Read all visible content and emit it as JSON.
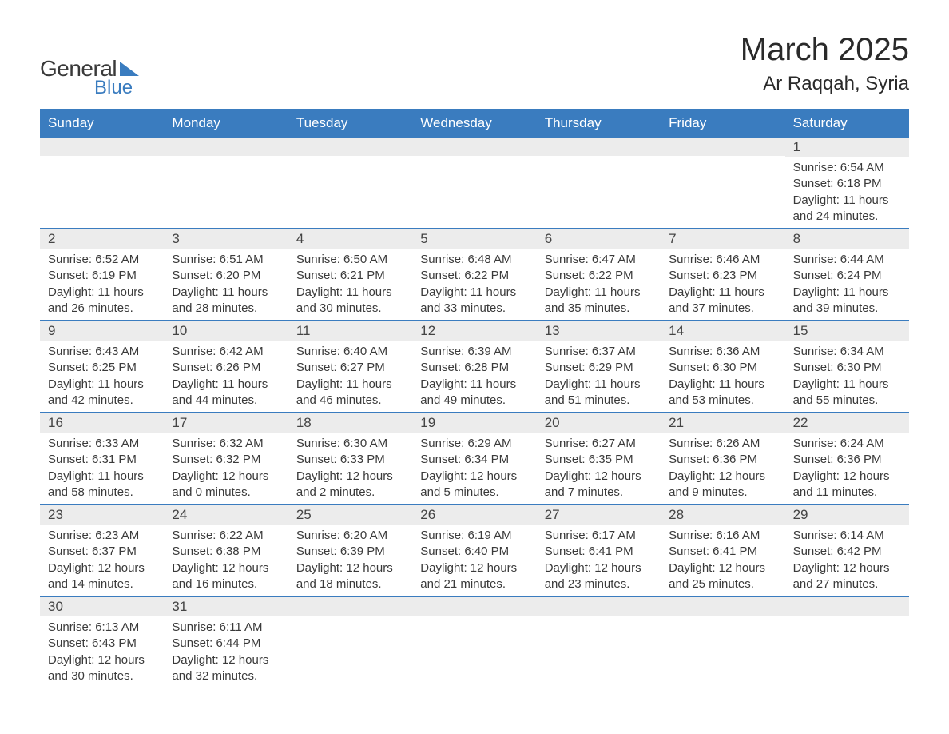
{
  "colors": {
    "header_bg": "#3a7cbf",
    "header_text": "#ffffff",
    "daynum_bg": "#ececec",
    "body_text": "#3a3a3a",
    "week_divider": "#3a7cbf",
    "page_bg": "#ffffff",
    "logo_accent": "#3a7cbf"
  },
  "logo": {
    "line1": "General",
    "line2": "Blue"
  },
  "title": {
    "month": "March 2025",
    "location": "Ar Raqqah, Syria"
  },
  "weekdays": [
    "Sunday",
    "Monday",
    "Tuesday",
    "Wednesday",
    "Thursday",
    "Friday",
    "Saturday"
  ],
  "weeks": [
    [
      {
        "n": "",
        "sr": "",
        "ss": "",
        "dl": ""
      },
      {
        "n": "",
        "sr": "",
        "ss": "",
        "dl": ""
      },
      {
        "n": "",
        "sr": "",
        "ss": "",
        "dl": ""
      },
      {
        "n": "",
        "sr": "",
        "ss": "",
        "dl": ""
      },
      {
        "n": "",
        "sr": "",
        "ss": "",
        "dl": ""
      },
      {
        "n": "",
        "sr": "",
        "ss": "",
        "dl": ""
      },
      {
        "n": "1",
        "sr": "Sunrise: 6:54 AM",
        "ss": "Sunset: 6:18 PM",
        "dl": "Daylight: 11 hours and 24 minutes."
      }
    ],
    [
      {
        "n": "2",
        "sr": "Sunrise: 6:52 AM",
        "ss": "Sunset: 6:19 PM",
        "dl": "Daylight: 11 hours and 26 minutes."
      },
      {
        "n": "3",
        "sr": "Sunrise: 6:51 AM",
        "ss": "Sunset: 6:20 PM",
        "dl": "Daylight: 11 hours and 28 minutes."
      },
      {
        "n": "4",
        "sr": "Sunrise: 6:50 AM",
        "ss": "Sunset: 6:21 PM",
        "dl": "Daylight: 11 hours and 30 minutes."
      },
      {
        "n": "5",
        "sr": "Sunrise: 6:48 AM",
        "ss": "Sunset: 6:22 PM",
        "dl": "Daylight: 11 hours and 33 minutes."
      },
      {
        "n": "6",
        "sr": "Sunrise: 6:47 AM",
        "ss": "Sunset: 6:22 PM",
        "dl": "Daylight: 11 hours and 35 minutes."
      },
      {
        "n": "7",
        "sr": "Sunrise: 6:46 AM",
        "ss": "Sunset: 6:23 PM",
        "dl": "Daylight: 11 hours and 37 minutes."
      },
      {
        "n": "8",
        "sr": "Sunrise: 6:44 AM",
        "ss": "Sunset: 6:24 PM",
        "dl": "Daylight: 11 hours and 39 minutes."
      }
    ],
    [
      {
        "n": "9",
        "sr": "Sunrise: 6:43 AM",
        "ss": "Sunset: 6:25 PM",
        "dl": "Daylight: 11 hours and 42 minutes."
      },
      {
        "n": "10",
        "sr": "Sunrise: 6:42 AM",
        "ss": "Sunset: 6:26 PM",
        "dl": "Daylight: 11 hours and 44 minutes."
      },
      {
        "n": "11",
        "sr": "Sunrise: 6:40 AM",
        "ss": "Sunset: 6:27 PM",
        "dl": "Daylight: 11 hours and 46 minutes."
      },
      {
        "n": "12",
        "sr": "Sunrise: 6:39 AM",
        "ss": "Sunset: 6:28 PM",
        "dl": "Daylight: 11 hours and 49 minutes."
      },
      {
        "n": "13",
        "sr": "Sunrise: 6:37 AM",
        "ss": "Sunset: 6:29 PM",
        "dl": "Daylight: 11 hours and 51 minutes."
      },
      {
        "n": "14",
        "sr": "Sunrise: 6:36 AM",
        "ss": "Sunset: 6:30 PM",
        "dl": "Daylight: 11 hours and 53 minutes."
      },
      {
        "n": "15",
        "sr": "Sunrise: 6:34 AM",
        "ss": "Sunset: 6:30 PM",
        "dl": "Daylight: 11 hours and 55 minutes."
      }
    ],
    [
      {
        "n": "16",
        "sr": "Sunrise: 6:33 AM",
        "ss": "Sunset: 6:31 PM",
        "dl": "Daylight: 11 hours and 58 minutes."
      },
      {
        "n": "17",
        "sr": "Sunrise: 6:32 AM",
        "ss": "Sunset: 6:32 PM",
        "dl": "Daylight: 12 hours and 0 minutes."
      },
      {
        "n": "18",
        "sr": "Sunrise: 6:30 AM",
        "ss": "Sunset: 6:33 PM",
        "dl": "Daylight: 12 hours and 2 minutes."
      },
      {
        "n": "19",
        "sr": "Sunrise: 6:29 AM",
        "ss": "Sunset: 6:34 PM",
        "dl": "Daylight: 12 hours and 5 minutes."
      },
      {
        "n": "20",
        "sr": "Sunrise: 6:27 AM",
        "ss": "Sunset: 6:35 PM",
        "dl": "Daylight: 12 hours and 7 minutes."
      },
      {
        "n": "21",
        "sr": "Sunrise: 6:26 AM",
        "ss": "Sunset: 6:36 PM",
        "dl": "Daylight: 12 hours and 9 minutes."
      },
      {
        "n": "22",
        "sr": "Sunrise: 6:24 AM",
        "ss": "Sunset: 6:36 PM",
        "dl": "Daylight: 12 hours and 11 minutes."
      }
    ],
    [
      {
        "n": "23",
        "sr": "Sunrise: 6:23 AM",
        "ss": "Sunset: 6:37 PM",
        "dl": "Daylight: 12 hours and 14 minutes."
      },
      {
        "n": "24",
        "sr": "Sunrise: 6:22 AM",
        "ss": "Sunset: 6:38 PM",
        "dl": "Daylight: 12 hours and 16 minutes."
      },
      {
        "n": "25",
        "sr": "Sunrise: 6:20 AM",
        "ss": "Sunset: 6:39 PM",
        "dl": "Daylight: 12 hours and 18 minutes."
      },
      {
        "n": "26",
        "sr": "Sunrise: 6:19 AM",
        "ss": "Sunset: 6:40 PM",
        "dl": "Daylight: 12 hours and 21 minutes."
      },
      {
        "n": "27",
        "sr": "Sunrise: 6:17 AM",
        "ss": "Sunset: 6:41 PM",
        "dl": "Daylight: 12 hours and 23 minutes."
      },
      {
        "n": "28",
        "sr": "Sunrise: 6:16 AM",
        "ss": "Sunset: 6:41 PM",
        "dl": "Daylight: 12 hours and 25 minutes."
      },
      {
        "n": "29",
        "sr": "Sunrise: 6:14 AM",
        "ss": "Sunset: 6:42 PM",
        "dl": "Daylight: 12 hours and 27 minutes."
      }
    ],
    [
      {
        "n": "30",
        "sr": "Sunrise: 6:13 AM",
        "ss": "Sunset: 6:43 PM",
        "dl": "Daylight: 12 hours and 30 minutes."
      },
      {
        "n": "31",
        "sr": "Sunrise: 6:11 AM",
        "ss": "Sunset: 6:44 PM",
        "dl": "Daylight: 12 hours and 32 minutes."
      },
      {
        "n": "",
        "sr": "",
        "ss": "",
        "dl": ""
      },
      {
        "n": "",
        "sr": "",
        "ss": "",
        "dl": ""
      },
      {
        "n": "",
        "sr": "",
        "ss": "",
        "dl": ""
      },
      {
        "n": "",
        "sr": "",
        "ss": "",
        "dl": ""
      },
      {
        "n": "",
        "sr": "",
        "ss": "",
        "dl": ""
      }
    ]
  ]
}
